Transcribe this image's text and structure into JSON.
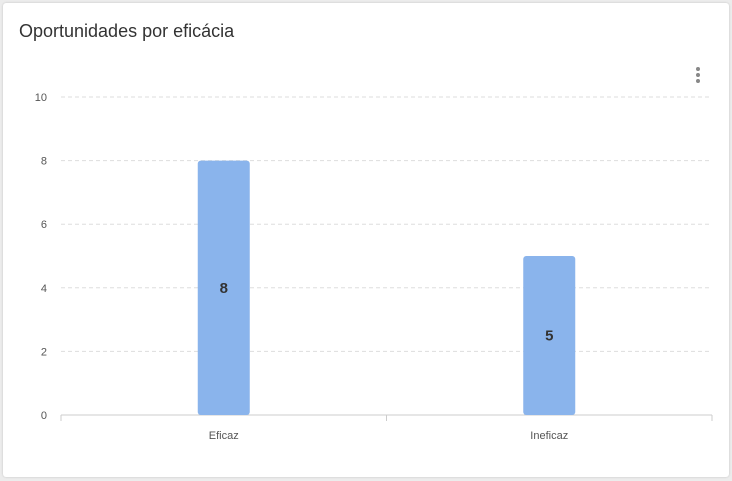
{
  "card": {
    "title": "Oportunidades por eficácia",
    "menu_icon": "more-vertical-icon"
  },
  "colors": {
    "bar": "#8ab4ec",
    "grid": "#dddddd",
    "axis": "#cccccc",
    "menu_dots": "#888888"
  },
  "chart_data": {
    "type": "bar",
    "title": "Oportunidades por eficácia",
    "categories": [
      "Eficaz",
      "Ineficaz"
    ],
    "values": [
      8,
      5
    ],
    "data_labels": [
      "8",
      "5"
    ],
    "ylim": [
      0,
      10
    ],
    "yticks": [
      0,
      2,
      4,
      6,
      8,
      10
    ],
    "ytick_labels": [
      "0",
      "2",
      "4",
      "6",
      "8",
      "10"
    ],
    "grid": true,
    "grid_style": "dashed",
    "legend": "none"
  }
}
